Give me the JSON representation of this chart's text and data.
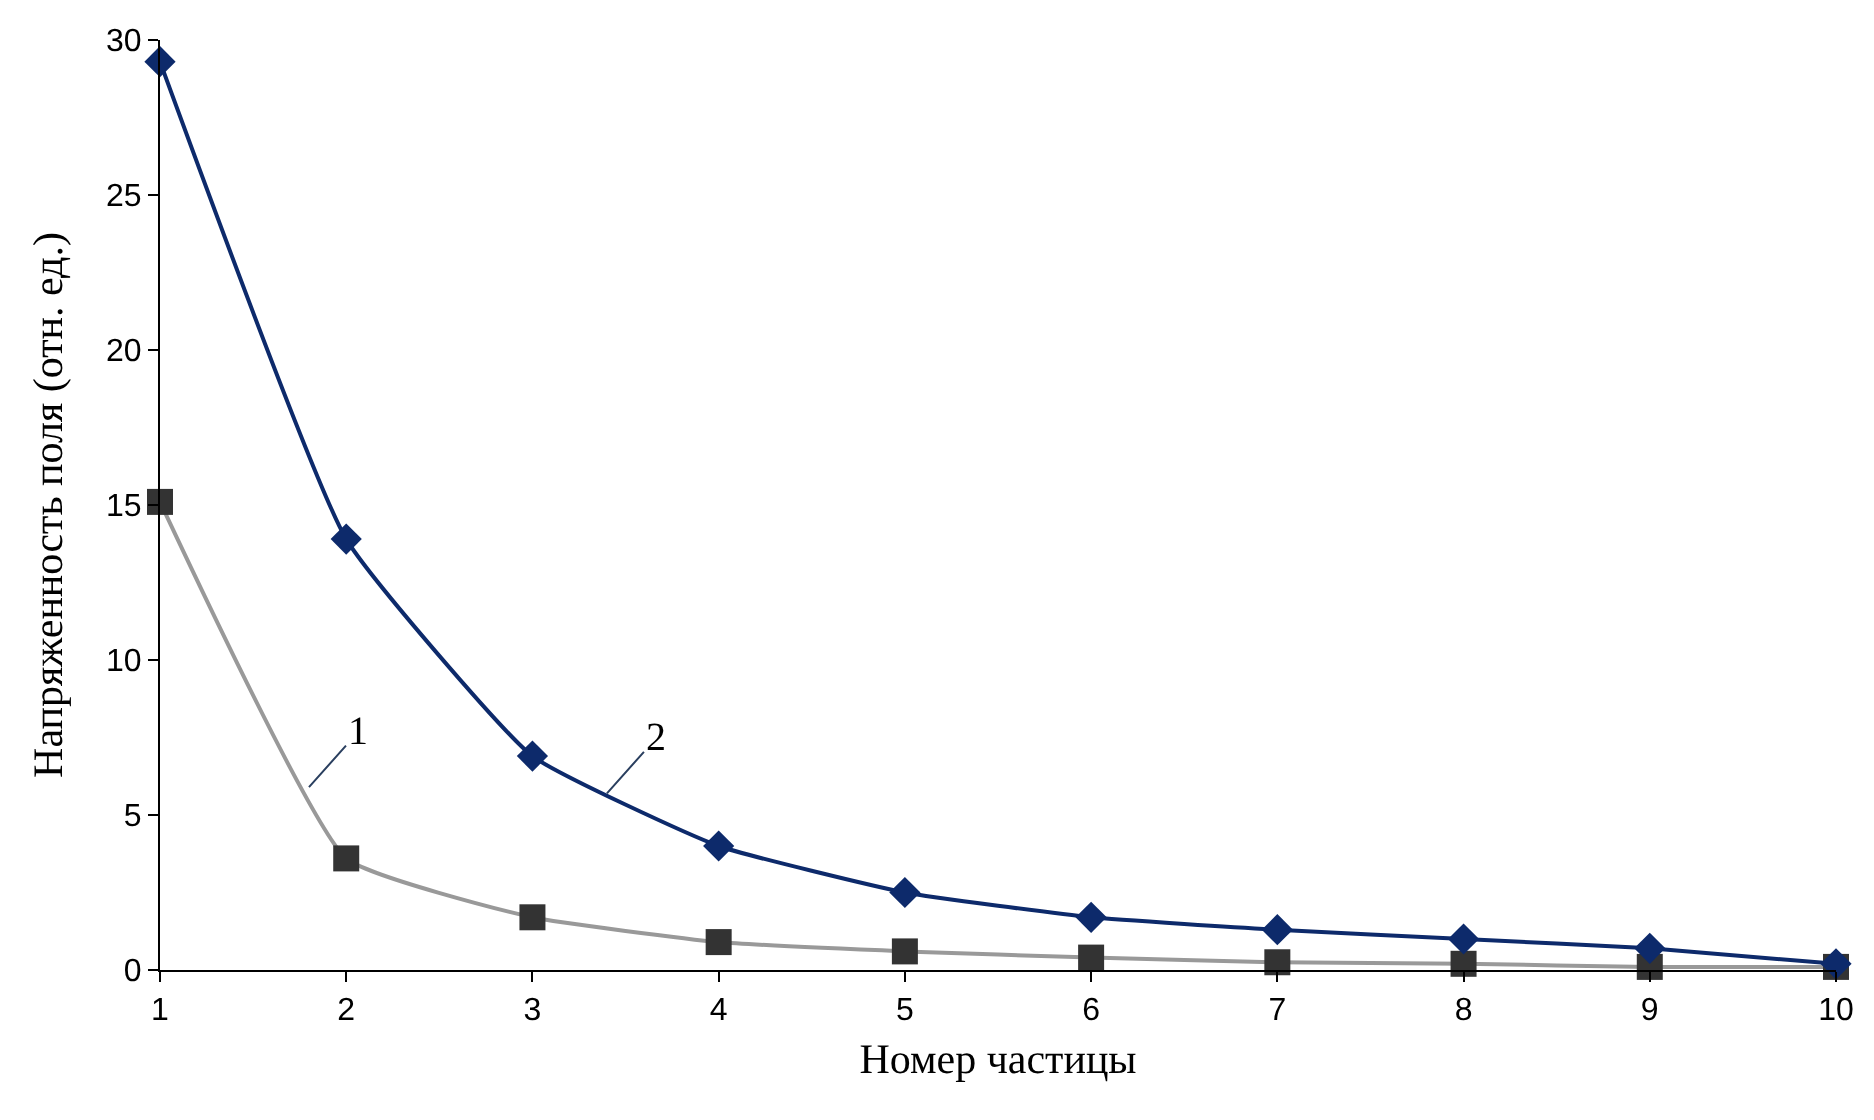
{
  "chart_data": {
    "type": "line",
    "xlabel": "Номер частицы",
    "ylabel": "Напряженность поля (отн. ед.)",
    "x": [
      1,
      2,
      3,
      4,
      5,
      6,
      7,
      8,
      9,
      10
    ],
    "series": [
      {
        "color": "#999999",
        "colors": [
          "#333333",
          "#333333",
          "#333333",
          "#333333",
          "#333333",
          "#333333",
          "#333333",
          "#333333",
          "#333333",
          "#333333"
        ],
        "marker": "square",
        "values": [
          15.1,
          3.6,
          1.7,
          0.9,
          0.6,
          0.4,
          0.25,
          0.2,
          0.1,
          0.1
        ]
      },
      {
        "color": "#0d2a6b",
        "marker": "diamond",
        "values": [
          29.3,
          13.9,
          6.9,
          4.0,
          2.5,
          1.7,
          1.3,
          1.0,
          0.7,
          0.2
        ]
      }
    ],
    "annotations": [
      {
        "text": "1",
        "x": 1.8,
        "y": 5.9
      },
      {
        "text": "2",
        "x": 3.4,
        "y": 5.7
      }
    ],
    "xlim": [
      1,
      10
    ],
    "xticks": [
      1,
      2,
      3,
      4,
      5,
      6,
      7,
      8,
      9,
      10
    ],
    "ylim": [
      0,
      30
    ],
    "yticks": [
      0,
      5,
      10,
      15,
      20,
      25,
      30
    ]
  }
}
